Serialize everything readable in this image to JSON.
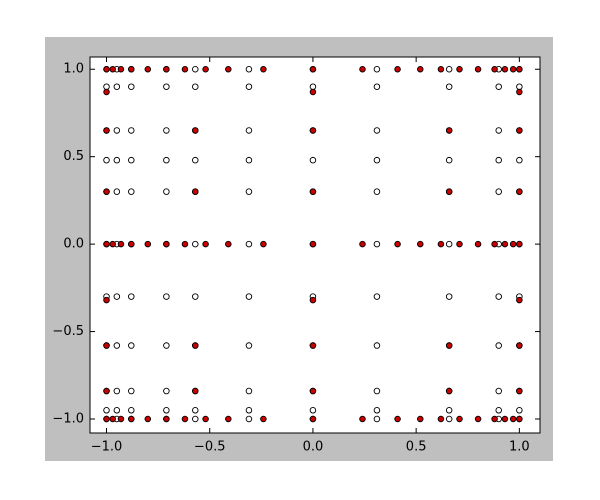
{
  "chart_data": {
    "type": "scatter",
    "xlim": [
      -1.08,
      1.1
    ],
    "ylim": [
      -1.08,
      1.07
    ],
    "xticks": [
      {
        "value": -1,
        "label": "−1.0"
      },
      {
        "value": -0.5,
        "label": "−0.5"
      },
      {
        "value": 0,
        "label": "0.0"
      },
      {
        "value": 0.5,
        "label": "0.5"
      },
      {
        "value": 1,
        "label": "1.0"
      }
    ],
    "yticks": [
      {
        "value": -1,
        "label": "−1.0"
      },
      {
        "value": -0.5,
        "label": "−0.5"
      },
      {
        "value": 0,
        "label": "0.0"
      },
      {
        "value": 0.5,
        "label": "0.5"
      },
      {
        "value": 1,
        "label": "1.0"
      }
    ],
    "series": [
      {
        "color": "#ffffff",
        "x": [
          -1,
          -0.95,
          -0.88,
          -0.71,
          -0.57,
          -0.31,
          0,
          0.31,
          0.66,
          0.9,
          1,
          -1,
          -0.95,
          -0.88,
          -0.71,
          -0.57,
          -0.31,
          0,
          0.31,
          0.66,
          0.9,
          1,
          -1,
          -0.95,
          -0.88,
          -0.71,
          -0.57,
          -0.31,
          0,
          0.31,
          0.66,
          0.9,
          1,
          -1,
          -0.95,
          -0.88,
          -0.71,
          -0.57,
          -0.31,
          0,
          0.31,
          0.66,
          0.9,
          1,
          -1,
          -0.95,
          -0.88,
          -0.71,
          -0.57,
          -0.31,
          0,
          0.31,
          0.66,
          0.9,
          1,
          -1,
          -0.95,
          -0.88,
          -0.71,
          -0.57,
          -0.31,
          0,
          0.31,
          0.66,
          0.9,
          1,
          -1,
          -0.95,
          -0.88,
          -0.71,
          -0.57,
          -0.31,
          0,
          0.31,
          0.66,
          0.9,
          1,
          -1,
          -0.95,
          -0.88,
          -0.71,
          -0.57,
          -0.31,
          0,
          0.31,
          0.66,
          0.9,
          1,
          -1,
          -0.95,
          -0.88,
          -0.71,
          -0.57,
          -0.31,
          0,
          0.31,
          0.66,
          0.9,
          1,
          -1,
          -0.95,
          -0.88,
          -0.71,
          -0.57,
          -0.31,
          0,
          0.31,
          0.66,
          0.9,
          1,
          -1,
          -0.95,
          -0.88,
          -0.71,
          -0.57,
          -0.31,
          0,
          0.31,
          0.66,
          0.9,
          1
        ],
        "y": [
          1,
          1,
          1,
          1,
          1,
          1,
          1,
          1,
          1,
          1,
          1,
          0.9,
          0.9,
          0.9,
          0.9,
          0.9,
          0.9,
          0.9,
          0.9,
          0.9,
          0.9,
          0.9,
          0.65,
          0.65,
          0.65,
          0.65,
          0.65,
          0.65,
          0.65,
          0.65,
          0.65,
          0.65,
          0.65,
          0.48,
          0.48,
          0.48,
          0.48,
          0.48,
          0.48,
          0.48,
          0.48,
          0.48,
          0.48,
          0.48,
          0.3,
          0.3,
          0.3,
          0.3,
          0.3,
          0.3,
          0.3,
          0.3,
          0.3,
          0.3,
          0.3,
          0,
          0,
          0,
          0,
          0,
          0,
          0,
          0,
          0,
          0,
          0,
          -0.3,
          -0.3,
          -0.3,
          -0.3,
          -0.3,
          -0.3,
          -0.3,
          -0.3,
          -0.3,
          -0.3,
          -0.3,
          -0.58,
          -0.58,
          -0.58,
          -0.58,
          -0.58,
          -0.58,
          -0.58,
          -0.58,
          -0.58,
          -0.58,
          -0.58,
          -0.84,
          -0.84,
          -0.84,
          -0.84,
          -0.84,
          -0.84,
          -0.84,
          -0.84,
          -0.84,
          -0.84,
          -0.84,
          -0.95,
          -0.95,
          -0.95,
          -0.95,
          -0.95,
          -0.95,
          -0.95,
          -0.95,
          -0.95,
          -0.95,
          -0.95,
          -1,
          -1,
          -1,
          -1,
          -1,
          -1,
          -1,
          -1,
          -1,
          -1,
          -1
        ]
      },
      {
        "color": "#cc0000",
        "x": [
          -1,
          -0.97,
          -0.93,
          -0.88,
          -0.8,
          -0.71,
          -0.62,
          -0.52,
          -0.41,
          -0.24,
          0,
          0.24,
          0.41,
          0.52,
          0.62,
          0.71,
          0.8,
          0.88,
          0.93,
          0.97,
          1,
          -1,
          -0.97,
          -0.93,
          -0.88,
          -0.8,
          -0.71,
          -0.62,
          -0.52,
          -0.41,
          -0.24,
          0,
          0.24,
          0.41,
          0.52,
          0.62,
          0.71,
          0.8,
          0.88,
          0.93,
          0.97,
          1,
          -1,
          -0.97,
          -0.93,
          -0.88,
          -0.8,
          -0.71,
          -0.62,
          -0.52,
          -0.41,
          -0.24,
          0,
          0.24,
          0.41,
          0.52,
          0.62,
          0.71,
          0.8,
          0.88,
          0.93,
          0.97,
          1,
          -1,
          0,
          1,
          -1,
          0,
          1,
          -1,
          0,
          1,
          -1,
          0,
          1,
          -1,
          0,
          1,
          -1,
          0,
          1,
          -0.57,
          0.66,
          -0.57,
          0.66,
          -0.57,
          0.66,
          -0.57,
          0.66
        ],
        "y": [
          1,
          1,
          1,
          1,
          1,
          1,
          1,
          1,
          1,
          1,
          1,
          1,
          1,
          1,
          1,
          1,
          1,
          1,
          1,
          1,
          1,
          0,
          0,
          0,
          0,
          0,
          0,
          0,
          0,
          0,
          0,
          0,
          0,
          0,
          0,
          0,
          0,
          0,
          0,
          0,
          0,
          0,
          -1,
          -1,
          -1,
          -1,
          -1,
          -1,
          -1,
          -1,
          -1,
          -1,
          -1,
          -1,
          -1,
          -1,
          -1,
          -1,
          -1,
          -1,
          -1,
          -1,
          -1,
          0.87,
          0.87,
          0.87,
          0.65,
          0.65,
          0.65,
          0.3,
          0.3,
          0.3,
          -0.32,
          -0.32,
          -0.32,
          -0.58,
          -0.58,
          -0.58,
          -0.84,
          -0.84,
          -0.84,
          0.65,
          0.65,
          -0.58,
          -0.58,
          0.3,
          0.3,
          -0.84,
          -0.84
        ]
      }
    ]
  }
}
